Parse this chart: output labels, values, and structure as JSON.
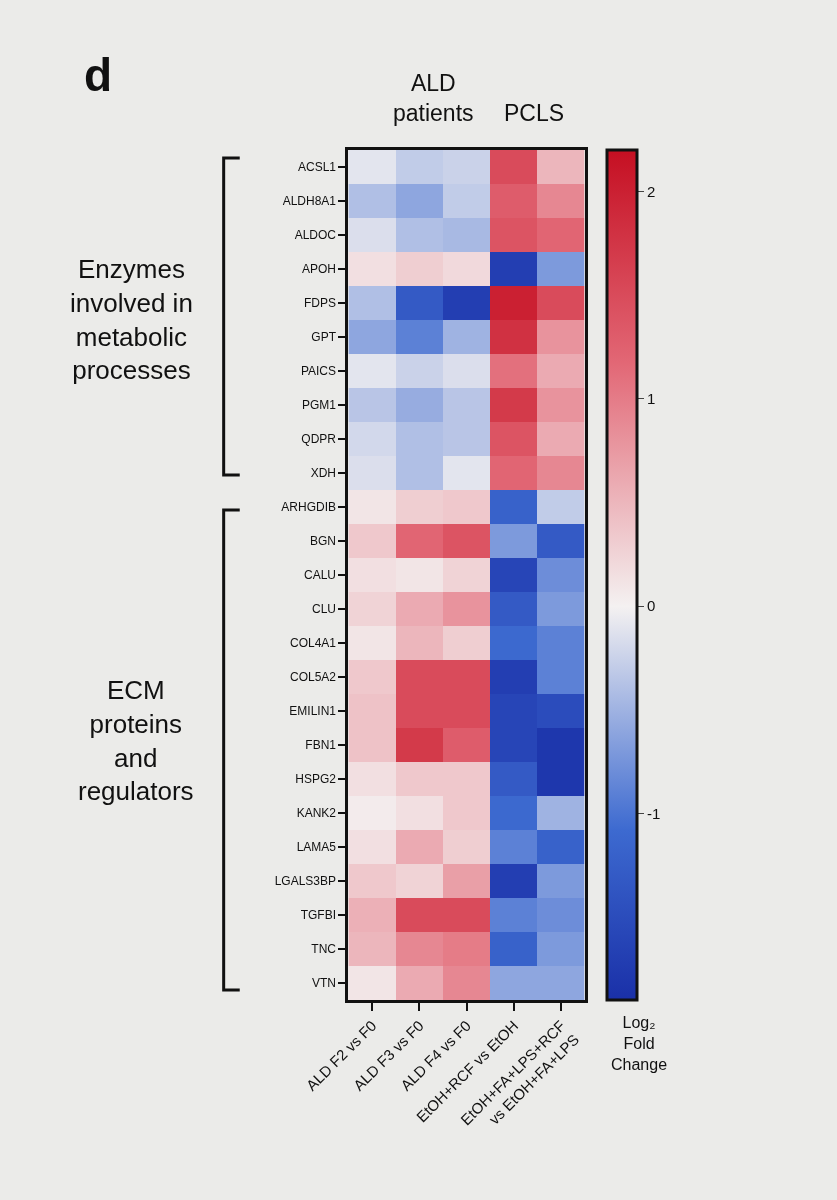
{
  "chart_data": {
    "type": "heatmap",
    "annotations": [
      "d",
      "ALD\npatients",
      "PCLS",
      "Enzymes\ninvolved in\nmetabolic\nprocesses",
      "ECM\nproteins\nand\nregulators"
    ],
    "clabel": "Log₂\nFold\nChange",
    "categories": [
      "ALD F2 vs F0",
      "ALD F3 vs F0",
      "ALD F4 vs F0",
      "EtOH+RCF vs EtOH",
      "EtOH+FA+LPS+RCF\nvs EtOH+FA+LPS"
    ],
    "y_categories": [
      "ACSL1",
      "ALDH8A1",
      "ALDOC",
      "APOH",
      "FDPS",
      "GPT",
      "PAICS",
      "PGM1",
      "QDPR",
      "XDH",
      "ARHGDIB",
      "BGN",
      "CALU",
      "CLU",
      "COL4A1",
      "COL5A2",
      "EMILIN1",
      "FBN1",
      "HSPG2",
      "KANK2",
      "LAMA5",
      "LGALS3BP",
      "TGFBI",
      "TNC",
      "VTN"
    ],
    "cells": [
      [
        -0.1,
        -0.3,
        -0.25,
        1.5,
        0.5
      ],
      [
        -0.4,
        -0.6,
        -0.3,
        1.3,
        0.9
      ],
      [
        -0.15,
        -0.4,
        -0.45,
        1.4,
        1.2
      ],
      [
        0.15,
        0.3,
        0.2,
        -1.7,
        -0.7
      ],
      [
        -0.4,
        -1.3,
        -1.7,
        2.0,
        1.5
      ],
      [
        -0.6,
        -0.9,
        -0.5,
        1.8,
        0.8
      ],
      [
        -0.1,
        -0.25,
        -0.15,
        1.1,
        0.6
      ],
      [
        -0.35,
        -0.55,
        -0.35,
        1.7,
        0.8
      ],
      [
        -0.2,
        -0.4,
        -0.35,
        1.4,
        0.6
      ],
      [
        -0.15,
        -0.4,
        -0.1,
        1.2,
        0.9
      ],
      [
        0.1,
        0.3,
        0.35,
        -1.2,
        -0.3
      ],
      [
        0.35,
        1.2,
        1.4,
        -0.7,
        -1.3
      ],
      [
        0.15,
        0.1,
        0.25,
        -1.6,
        -0.8
      ],
      [
        0.25,
        0.6,
        0.8,
        -1.3,
        -0.7
      ],
      [
        0.1,
        0.5,
        0.3,
        -1.1,
        -0.9
      ],
      [
        0.35,
        1.5,
        1.5,
        -1.7,
        -0.9
      ],
      [
        0.4,
        1.5,
        1.5,
        -1.6,
        -1.5
      ],
      [
        0.4,
        1.7,
        1.3,
        -1.6,
        -1.8
      ],
      [
        0.15,
        0.35,
        0.35,
        -1.3,
        -1.8
      ],
      [
        0.05,
        0.15,
        0.35,
        -1.1,
        -0.5
      ],
      [
        0.15,
        0.6,
        0.3,
        -0.9,
        -1.2
      ],
      [
        0.35,
        0.25,
        0.7,
        -1.7,
        -0.7
      ],
      [
        0.55,
        1.5,
        1.5,
        -0.9,
        -0.8
      ],
      [
        0.5,
        0.9,
        1.0,
        -1.2,
        -0.7
      ],
      [
        0.1,
        0.6,
        0.9,
        -0.6,
        -0.6
      ]
    ],
    "clim": [
      -1.9,
      2.2
    ],
    "cticks": [
      2,
      1,
      0,
      -1
    ]
  }
}
